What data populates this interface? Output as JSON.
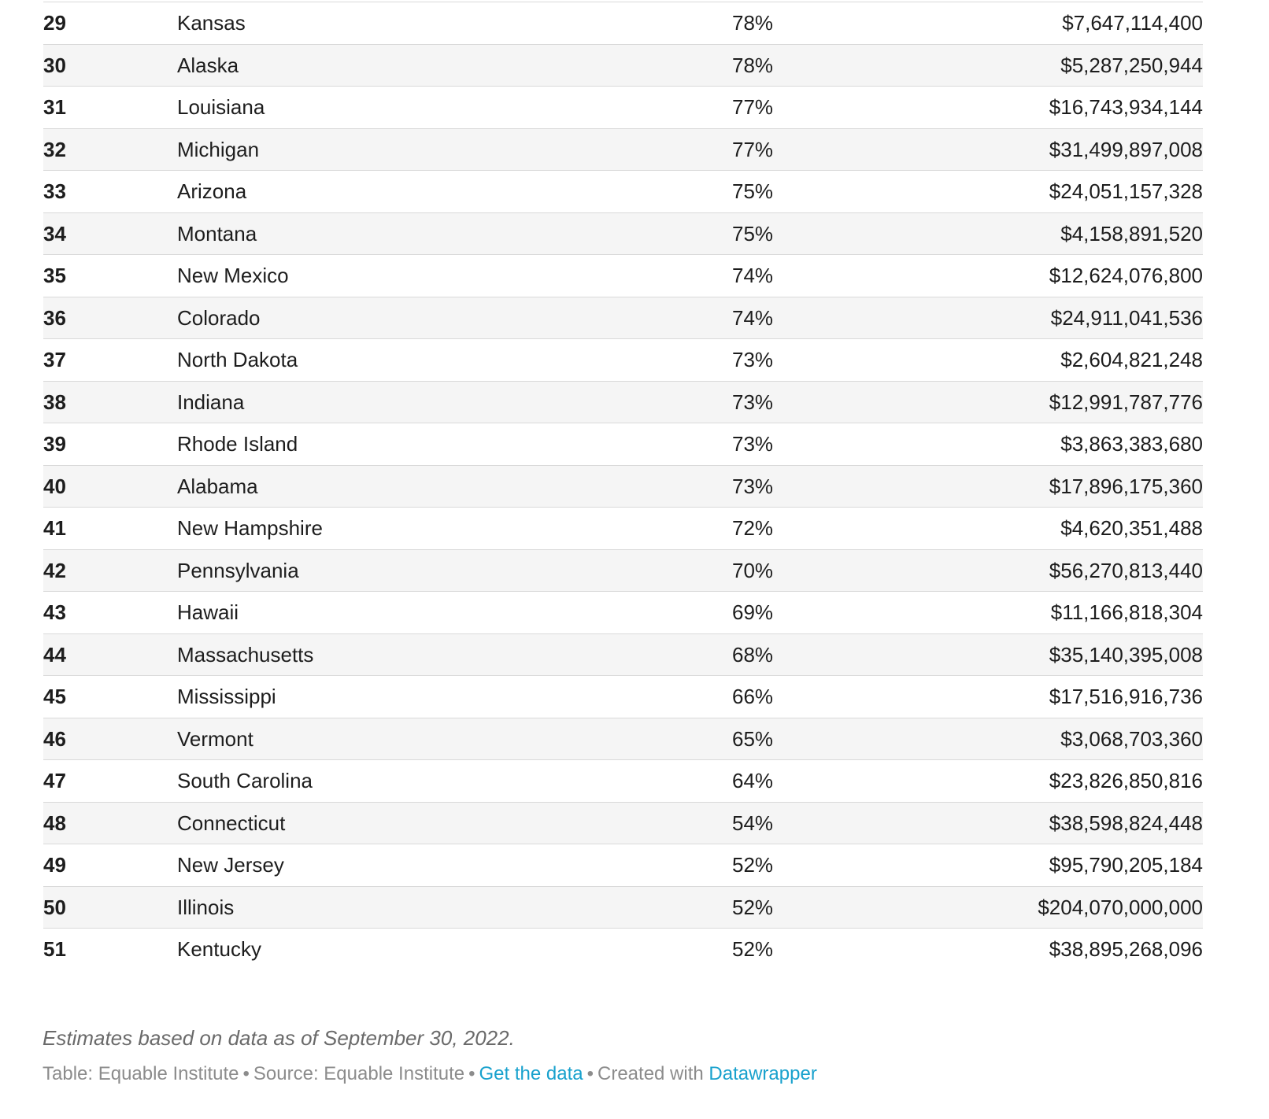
{
  "chart_data": {
    "type": "table",
    "rows": [
      {
        "rank": "29",
        "state": "Kansas",
        "funded": "78%",
        "amount": "$7,647,114,400"
      },
      {
        "rank": "30",
        "state": "Alaska",
        "funded": "78%",
        "amount": "$5,287,250,944"
      },
      {
        "rank": "31",
        "state": "Louisiana",
        "funded": "77%",
        "amount": "$16,743,934,144"
      },
      {
        "rank": "32",
        "state": "Michigan",
        "funded": "77%",
        "amount": "$31,499,897,008"
      },
      {
        "rank": "33",
        "state": "Arizona",
        "funded": "75%",
        "amount": "$24,051,157,328"
      },
      {
        "rank": "34",
        "state": "Montana",
        "funded": "75%",
        "amount": "$4,158,891,520"
      },
      {
        "rank": "35",
        "state": "New Mexico",
        "funded": "74%",
        "amount": "$12,624,076,800"
      },
      {
        "rank": "36",
        "state": "Colorado",
        "funded": "74%",
        "amount": "$24,911,041,536"
      },
      {
        "rank": "37",
        "state": "North Dakota",
        "funded": "73%",
        "amount": "$2,604,821,248"
      },
      {
        "rank": "38",
        "state": "Indiana",
        "funded": "73%",
        "amount": "$12,991,787,776"
      },
      {
        "rank": "39",
        "state": "Rhode Island",
        "funded": "73%",
        "amount": "$3,863,383,680"
      },
      {
        "rank": "40",
        "state": "Alabama",
        "funded": "73%",
        "amount": "$17,896,175,360"
      },
      {
        "rank": "41",
        "state": "New Hampshire",
        "funded": "72%",
        "amount": "$4,620,351,488"
      },
      {
        "rank": "42",
        "state": "Pennsylvania",
        "funded": "70%",
        "amount": "$56,270,813,440"
      },
      {
        "rank": "43",
        "state": "Hawaii",
        "funded": "69%",
        "amount": "$11,166,818,304"
      },
      {
        "rank": "44",
        "state": "Massachusetts",
        "funded": "68%",
        "amount": "$35,140,395,008"
      },
      {
        "rank": "45",
        "state": "Mississippi",
        "funded": "66%",
        "amount": "$17,516,916,736"
      },
      {
        "rank": "46",
        "state": "Vermont",
        "funded": "65%",
        "amount": "$3,068,703,360"
      },
      {
        "rank": "47",
        "state": "South Carolina",
        "funded": "64%",
        "amount": "$23,826,850,816"
      },
      {
        "rank": "48",
        "state": "Connecticut",
        "funded": "54%",
        "amount": "$38,598,824,448"
      },
      {
        "rank": "49",
        "state": "New Jersey",
        "funded": "52%",
        "amount": "$95,790,205,184"
      },
      {
        "rank": "50",
        "state": "Illinois",
        "funded": "52%",
        "amount": "$204,070,000,000"
      },
      {
        "rank": "51",
        "state": "Kentucky",
        "funded": "52%",
        "amount": "$38,895,268,096"
      }
    ],
    "layout_hints": {
      "striped_rows": true,
      "stripe_color": "#f5f5f5",
      "border_color": "#d9d9d9",
      "first_visible_rank": 29,
      "last_visible_rank": 51
    }
  },
  "footer": {
    "note": "Estimates based on data as of September 30, 2022.",
    "table_credit": "Table: Equable Institute",
    "source_credit": "Source: Equable Institute",
    "get_data_label": "Get the data",
    "created_with": "Created with",
    "datawrapper_label": "Datawrapper",
    "separator": "•",
    "link_color": "#18a1cd"
  }
}
